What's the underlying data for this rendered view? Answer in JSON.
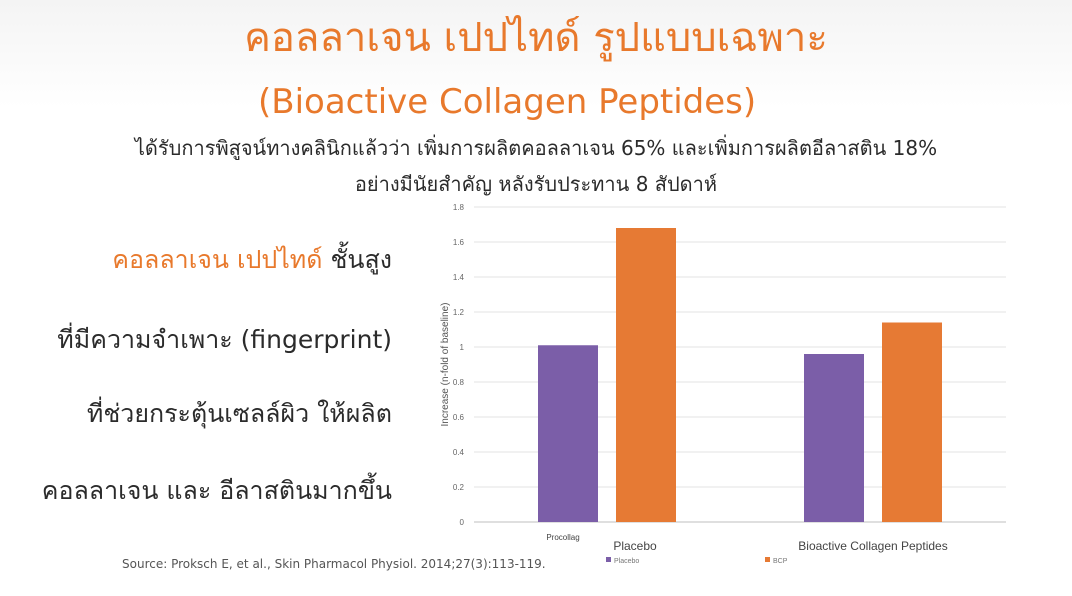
{
  "slide": {
    "title": "คอลลาเจน เปปไทด์ รูปแบบเฉพาะ",
    "subtitle": "(Bioactive Collagen Peptides)",
    "claim_line1": "ได้รับการพิสูจน์ทางคลินิกแล้วว่า เพิ่มการผลิตคอลลาเจน 65% และเพิ่มการผลิตอีลาสติน 18%",
    "claim_line2": "อย่างมีนัยสำคัญ หลังรับประทาน 8 สัปดาห์",
    "features": {
      "line1_highlight": "คอลลาเจน เปปไทด์",
      "line1_rest": " ชั้นสูง",
      "line2": "ที่มีความจำเพาะ (fingerprint)",
      "line3": "ที่ช่วยกระตุ้นเซลล์ผิว ให้ผลิต",
      "line4": "คอลลาเจน และ อีลาสตินมากขึ้น"
    },
    "source": "Source: Proksch E, et al., Skin Pharmacol Physiol. 2014;27(3):113-119."
  },
  "chart_data": {
    "type": "bar",
    "categories": [
      "Procollag",
      "Bioactive Collagen Peptides"
    ],
    "category_overlay_label": "Placebo",
    "series": [
      {
        "name": "Placebo",
        "values": [
          1.01,
          0.96
        ],
        "color": "#7b5ea8"
      },
      {
        "name": "BCP",
        "values": [
          1.68,
          1.14
        ],
        "color": "#e67a34"
      }
    ],
    "ylabel": "Increase (n-fold of baseline)",
    "ylim": [
      0,
      1.8
    ],
    "yticks": [
      "0",
      "0.2",
      "0.4",
      "0.6",
      "0.8",
      "1",
      "1.2",
      "1.4",
      "1.6",
      "1.8"
    ],
    "grid": true,
    "legend_position": "bottom"
  }
}
